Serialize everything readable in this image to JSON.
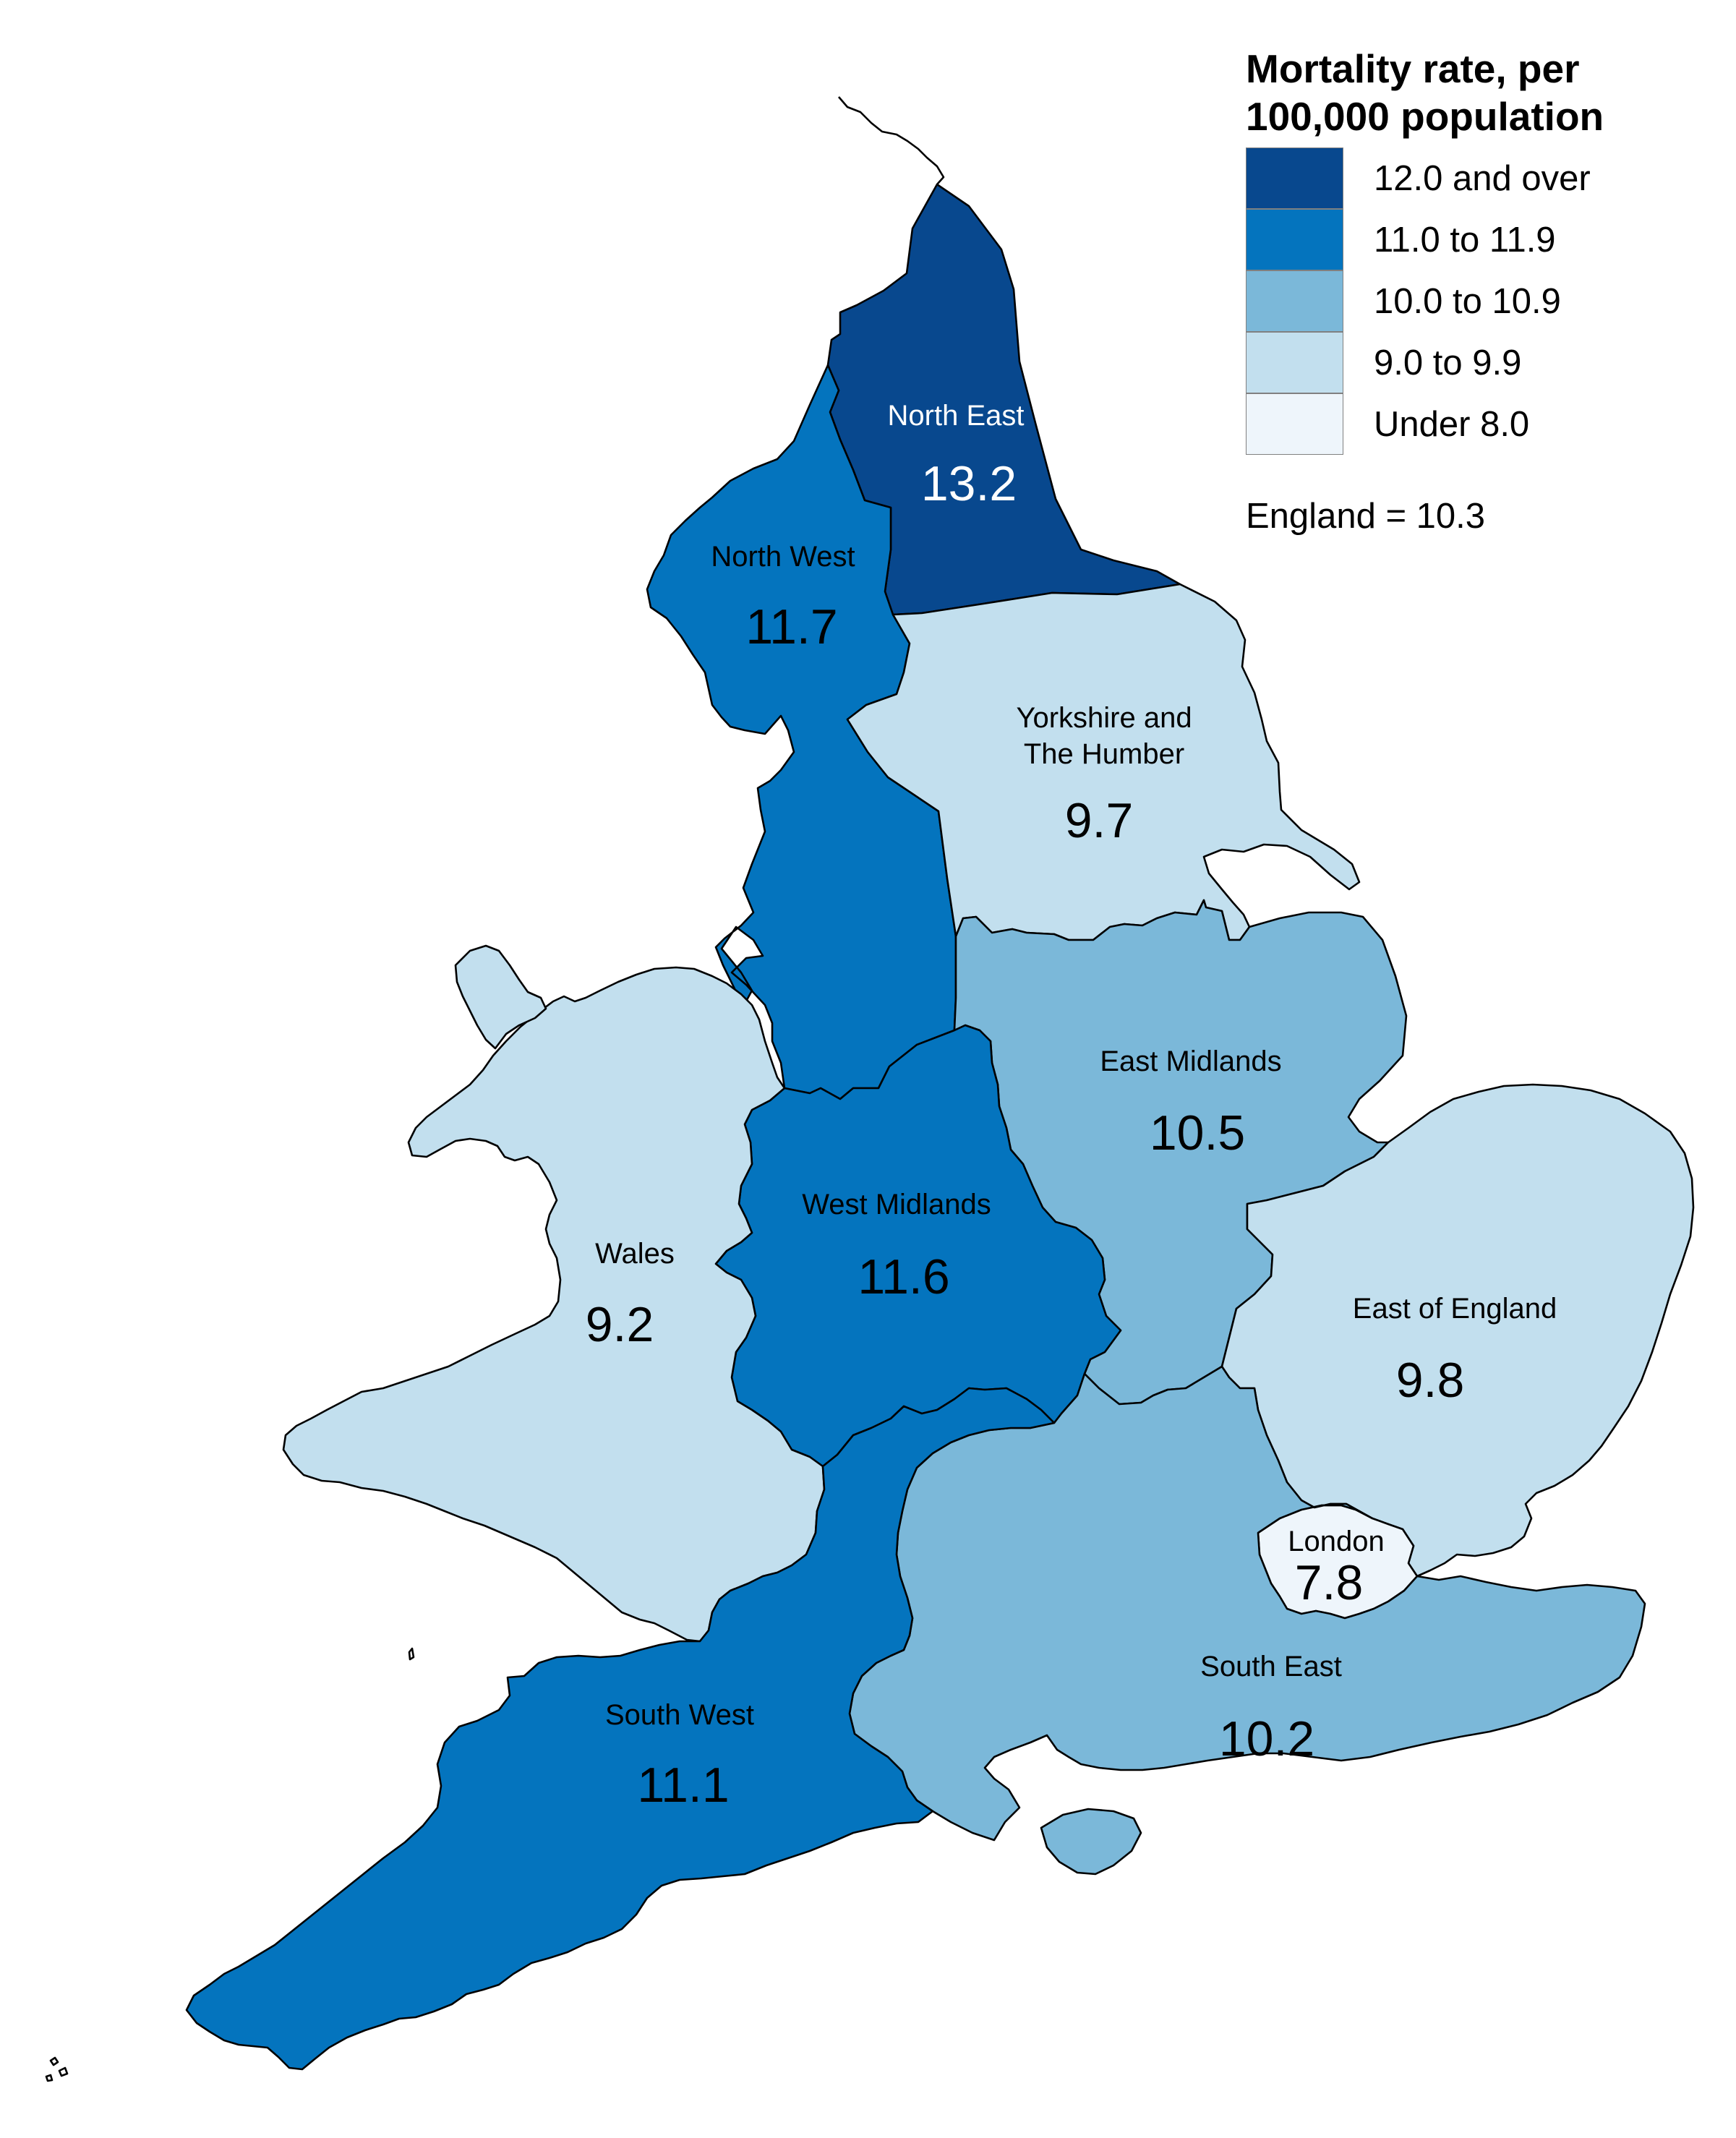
{
  "legend": {
    "title": "Mortality rate, per 100,000 population",
    "classes": [
      {
        "label": "12.0 and over",
        "color": "#08488e"
      },
      {
        "label": "11.0 to 11.9",
        "color": "#0474be"
      },
      {
        "label": "10.0 to 10.9",
        "color": "#7bb8d9"
      },
      {
        "label": "9.0 to 9.9",
        "color": "#c2dfee"
      },
      {
        "label": "Under 8.0",
        "color": "#eef5fb"
      }
    ]
  },
  "england_summary": "England = 10.3",
  "regions": {
    "north_east": {
      "name": "North East",
      "value": "13.2"
    },
    "north_west": {
      "name": "North West",
      "value": "11.7"
    },
    "yorkshire": {
      "name": "Yorkshire and The Humber",
      "name_line1": "Yorkshire and",
      "name_line2": "The Humber",
      "value": "9.7"
    },
    "east_midlands": {
      "name": "East Midlands",
      "value": "10.5"
    },
    "west_midlands": {
      "name": "West Midlands",
      "value": "11.6"
    },
    "wales": {
      "name": "Wales",
      "value": "9.2"
    },
    "east_of_england": {
      "name": "East of England",
      "value": "9.8"
    },
    "london": {
      "name": "London",
      "value": "7.8"
    },
    "south_east": {
      "name": "South East",
      "value": "10.2"
    },
    "south_west": {
      "name": "South West",
      "value": "11.1"
    }
  }
}
